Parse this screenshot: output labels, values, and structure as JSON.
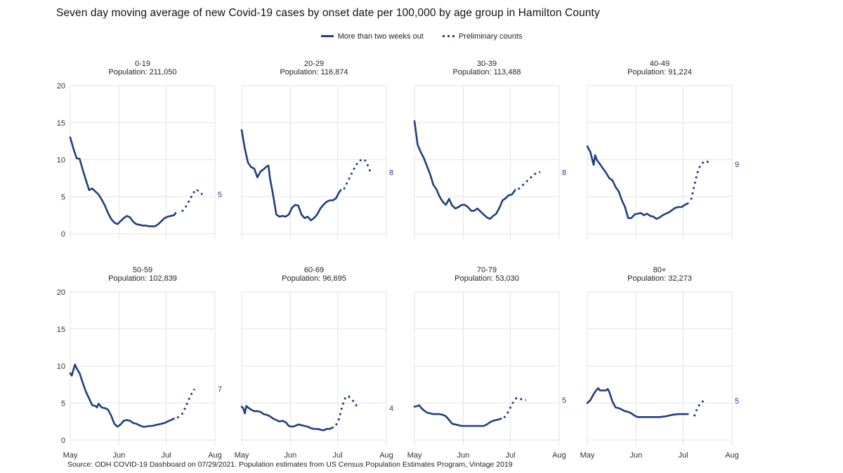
{
  "title": "Seven day moving average of new Covid-19 cases by onset date per 100,000 by age group in Hamilton County",
  "legend": {
    "solid_label": "More than two weeks out",
    "dotted_label": "Preliminary counts"
  },
  "source": "Source: ODH COVID-19 Dashboard on 07/29/2021. Population estimates from US Census Population Estimates Program, Vintage 2019",
  "colors": {
    "line": "#1f3f7f",
    "grid": "#e3e3e3",
    "axis_text": "#333333"
  },
  "chart_data": {
    "type": "line",
    "x_tick_labels": [
      "May",
      "Jun",
      "Jul",
      "Aug"
    ],
    "x_tick_days": [
      0,
      31,
      61,
      92
    ],
    "x_range_days": [
      0,
      92
    ],
    "y_ticks": [
      0,
      5,
      10,
      15,
      20
    ],
    "ylim": [
      0,
      20
    ],
    "grid": true,
    "panels": [
      {
        "title": "0-19",
        "subtitle": "Population: 211,050",
        "end_label": "5",
        "solid": [
          [
            0,
            13
          ],
          [
            2,
            11.5
          ],
          [
            4,
            10.2
          ],
          [
            6,
            10.1
          ],
          [
            8,
            8.6
          ],
          [
            10,
            7.2
          ],
          [
            12,
            5.9
          ],
          [
            14,
            6.1
          ],
          [
            16,
            5.7
          ],
          [
            18,
            5.3
          ],
          [
            20,
            4.6
          ],
          [
            22,
            3.8
          ],
          [
            24,
            2.8
          ],
          [
            26,
            2
          ],
          [
            28,
            1.5
          ],
          [
            30,
            1.3
          ],
          [
            32,
            1.7
          ],
          [
            34,
            2.1
          ],
          [
            36,
            2.4
          ],
          [
            38,
            2.2
          ],
          [
            40,
            1.6
          ],
          [
            42,
            1.3
          ],
          [
            44,
            1.2
          ],
          [
            46,
            1.1
          ],
          [
            48,
            1.1
          ],
          [
            50,
            1
          ],
          [
            52,
            1
          ],
          [
            54,
            1
          ],
          [
            56,
            1.3
          ],
          [
            58,
            1.7
          ],
          [
            60,
            2.1
          ],
          [
            62,
            2.3
          ],
          [
            64,
            2.4
          ],
          [
            66,
            2.5
          ],
          [
            67,
            2.8
          ]
        ],
        "prelim": [
          [
            71,
            3
          ],
          [
            74,
            3.8
          ],
          [
            76,
            4.6
          ],
          [
            78,
            5.4
          ],
          [
            80,
            6
          ],
          [
            82,
            5.7
          ],
          [
            84,
            5.3
          ]
        ]
      },
      {
        "title": "20-29",
        "subtitle": "Population: 116,874",
        "end_label": "8",
        "solid": [
          [
            0,
            14
          ],
          [
            2,
            11.5
          ],
          [
            4,
            9.6
          ],
          [
            6,
            9
          ],
          [
            8,
            8.8
          ],
          [
            10,
            7.6
          ],
          [
            12,
            8.4
          ],
          [
            14,
            8.7
          ],
          [
            16,
            9.1
          ],
          [
            17,
            9.2
          ],
          [
            18,
            7.5
          ],
          [
            20,
            5.2
          ],
          [
            22,
            2.6
          ],
          [
            24,
            2.3
          ],
          [
            26,
            2.4
          ],
          [
            28,
            2.3
          ],
          [
            30,
            2.6
          ],
          [
            32,
            3.5
          ],
          [
            34,
            3.9
          ],
          [
            36,
            3.8
          ],
          [
            38,
            2.6
          ],
          [
            40,
            2.1
          ],
          [
            42,
            2.3
          ],
          [
            44,
            1.8
          ],
          [
            46,
            2.1
          ],
          [
            48,
            2.6
          ],
          [
            50,
            3.4
          ],
          [
            52,
            3.9
          ],
          [
            54,
            4.3
          ],
          [
            56,
            4.5
          ],
          [
            58,
            4.5
          ],
          [
            60,
            4.8
          ],
          [
            62,
            5.6
          ],
          [
            63,
            5.9
          ]
        ],
        "prelim": [
          [
            65,
            6
          ],
          [
            68,
            7.3
          ],
          [
            71,
            8.6
          ],
          [
            74,
            9.7
          ],
          [
            77,
            10.1
          ],
          [
            79,
            9.8
          ],
          [
            82,
            8.3
          ]
        ]
      },
      {
        "title": "30-39",
        "subtitle": "Population: 113,488",
        "end_label": "8",
        "solid": [
          [
            0,
            15.2
          ],
          [
            2,
            12
          ],
          [
            4,
            11
          ],
          [
            6,
            10.2
          ],
          [
            8,
            9.1
          ],
          [
            10,
            8
          ],
          [
            12,
            6.6
          ],
          [
            14,
            6
          ],
          [
            16,
            5
          ],
          [
            18,
            4.3
          ],
          [
            20,
            3.9
          ],
          [
            22,
            4.7
          ],
          [
            24,
            3.8
          ],
          [
            26,
            3.4
          ],
          [
            28,
            3.6
          ],
          [
            30,
            3.9
          ],
          [
            32,
            3.9
          ],
          [
            34,
            3.6
          ],
          [
            36,
            3.1
          ],
          [
            38,
            3.1
          ],
          [
            40,
            3.4
          ],
          [
            42,
            3
          ],
          [
            44,
            2.6
          ],
          [
            46,
            2.2
          ],
          [
            48,
            2
          ],
          [
            50,
            2.4
          ],
          [
            52,
            2.7
          ],
          [
            54,
            3.5
          ],
          [
            56,
            4.5
          ],
          [
            58,
            4.8
          ],
          [
            60,
            5.2
          ],
          [
            62,
            5.3
          ],
          [
            64,
            5.9
          ]
        ],
        "prelim": [
          [
            66,
            6
          ],
          [
            69,
            6.6
          ],
          [
            72,
            7.2
          ],
          [
            75,
            7.8
          ],
          [
            78,
            8.3
          ],
          [
            80,
            8.3
          ]
        ]
      },
      {
        "title": "40-49",
        "subtitle": "Population:  91,224",
        "end_label": "9",
        "solid": [
          [
            0,
            11.8
          ],
          [
            2,
            11
          ],
          [
            4,
            9.3
          ],
          [
            5,
            10.6
          ],
          [
            6,
            10
          ],
          [
            8,
            9.4
          ],
          [
            10,
            8.8
          ],
          [
            12,
            8.2
          ],
          [
            14,
            7.5
          ],
          [
            16,
            7.2
          ],
          [
            18,
            6.3
          ],
          [
            20,
            5.7
          ],
          [
            22,
            4.5
          ],
          [
            24,
            3.6
          ],
          [
            26,
            2.1
          ],
          [
            28,
            2.1
          ],
          [
            30,
            2.6
          ],
          [
            32,
            2.7
          ],
          [
            34,
            2.8
          ],
          [
            36,
            2.5
          ],
          [
            38,
            2.7
          ],
          [
            40,
            2.4
          ],
          [
            42,
            2.3
          ],
          [
            44,
            2
          ],
          [
            46,
            2.2
          ],
          [
            48,
            2.5
          ],
          [
            50,
            2.7
          ],
          [
            52,
            2.9
          ],
          [
            54,
            3.2
          ],
          [
            56,
            3.5
          ],
          [
            58,
            3.6
          ],
          [
            60,
            3.6
          ],
          [
            62,
            3.9
          ],
          [
            64,
            4.1
          ]
        ],
        "prelim": [
          [
            66,
            4.6
          ],
          [
            68,
            6.5
          ],
          [
            70,
            8.2
          ],
          [
            72,
            9.3
          ],
          [
            74,
            9.7
          ],
          [
            76,
            9.8
          ],
          [
            78,
            9.4
          ]
        ]
      },
      {
        "title": "50-59",
        "subtitle": "Population: 102,839",
        "end_label": "7",
        "solid": [
          [
            0,
            9
          ],
          [
            1,
            8.7
          ],
          [
            2,
            9.5
          ],
          [
            3,
            10.2
          ],
          [
            4,
            9.7
          ],
          [
            6,
            9
          ],
          [
            8,
            7.7
          ],
          [
            10,
            6.5
          ],
          [
            12,
            5.6
          ],
          [
            14,
            4.7
          ],
          [
            16,
            4.6
          ],
          [
            17,
            4.4
          ],
          [
            18,
            4.9
          ],
          [
            20,
            4.4
          ],
          [
            22,
            4.3
          ],
          [
            24,
            4.1
          ],
          [
            26,
            3.3
          ],
          [
            28,
            2.2
          ],
          [
            30,
            1.8
          ],
          [
            32,
            2.1
          ],
          [
            34,
            2.6
          ],
          [
            36,
            2.7
          ],
          [
            38,
            2.6
          ],
          [
            40,
            2.3
          ],
          [
            42,
            2.2
          ],
          [
            44,
            2
          ],
          [
            46,
            1.8
          ],
          [
            48,
            1.8
          ],
          [
            50,
            1.9
          ],
          [
            52,
            1.9
          ],
          [
            54,
            2
          ],
          [
            56,
            2.1
          ],
          [
            58,
            2.2
          ],
          [
            60,
            2.3
          ],
          [
            62,
            2.5
          ],
          [
            64,
            2.7
          ],
          [
            66,
            2.9
          ]
        ],
        "prelim": [
          [
            68,
            3
          ],
          [
            71,
            3.5
          ],
          [
            73,
            4.3
          ],
          [
            75,
            5.3
          ],
          [
            77,
            6.2
          ],
          [
            79,
            6.9
          ]
        ]
      },
      {
        "title": "60-69",
        "subtitle": "Population:  96,695",
        "end_label": "4",
        "solid": [
          [
            0,
            4.5
          ],
          [
            1,
            4.3
          ],
          [
            2,
            3.6
          ],
          [
            3,
            4.6
          ],
          [
            4,
            4.4
          ],
          [
            6,
            4.1
          ],
          [
            8,
            3.9
          ],
          [
            10,
            3.9
          ],
          [
            12,
            3.8
          ],
          [
            14,
            3.5
          ],
          [
            16,
            3.4
          ],
          [
            18,
            3.2
          ],
          [
            20,
            2.9
          ],
          [
            22,
            2.7
          ],
          [
            24,
            2.5
          ],
          [
            26,
            2.6
          ],
          [
            28,
            2.4
          ],
          [
            30,
            1.9
          ],
          [
            32,
            1.8
          ],
          [
            34,
            1.9
          ],
          [
            36,
            2.1
          ],
          [
            38,
            2
          ],
          [
            40,
            1.9
          ],
          [
            42,
            1.8
          ],
          [
            44,
            1.6
          ],
          [
            46,
            1.5
          ],
          [
            48,
            1.5
          ],
          [
            50,
            1.4
          ],
          [
            52,
            1.3
          ],
          [
            54,
            1.5
          ],
          [
            56,
            1.5
          ],
          [
            58,
            1.7
          ]
        ],
        "prelim": [
          [
            60,
            2
          ],
          [
            62,
            2.9
          ],
          [
            64,
            4.6
          ],
          [
            66,
            5.8
          ],
          [
            68,
            5.9
          ],
          [
            70,
            5.5
          ],
          [
            72,
            5
          ],
          [
            74,
            4.3
          ]
        ]
      },
      {
        "title": "70-79",
        "subtitle": "Population:  53,030",
        "end_label": "5",
        "solid": [
          [
            0,
            4.5
          ],
          [
            2,
            4.6
          ],
          [
            3,
            4.7
          ],
          [
            4,
            4.4
          ],
          [
            6,
            4
          ],
          [
            8,
            3.7
          ],
          [
            10,
            3.6
          ],
          [
            12,
            3.5
          ],
          [
            14,
            3.5
          ],
          [
            16,
            3.5
          ],
          [
            18,
            3.4
          ],
          [
            20,
            3.2
          ],
          [
            22,
            2.7
          ],
          [
            24,
            2.2
          ],
          [
            26,
            2.1
          ],
          [
            28,
            2
          ],
          [
            30,
            1.9
          ],
          [
            32,
            1.9
          ],
          [
            34,
            1.9
          ],
          [
            36,
            1.9
          ],
          [
            38,
            1.9
          ],
          [
            40,
            1.9
          ],
          [
            42,
            1.9
          ],
          [
            44,
            1.9
          ],
          [
            46,
            2.1
          ],
          [
            48,
            2.4
          ],
          [
            50,
            2.6
          ],
          [
            52,
            2.7
          ],
          [
            54,
            2.8
          ],
          [
            55,
            2.9
          ]
        ],
        "prelim": [
          [
            57,
            3
          ],
          [
            59,
            3.6
          ],
          [
            61,
            4.4
          ],
          [
            63,
            5.2
          ],
          [
            65,
            5.7
          ],
          [
            67,
            5.6
          ],
          [
            69,
            5.4
          ],
          [
            71,
            5.4
          ]
        ]
      },
      {
        "title": "80+",
        "subtitle": "Population:  32,273",
        "end_label": "5",
        "solid": [
          [
            0,
            5
          ],
          [
            2,
            5.4
          ],
          [
            4,
            6.2
          ],
          [
            6,
            6.8
          ],
          [
            7,
            7
          ],
          [
            8,
            6.7
          ],
          [
            12,
            6.7
          ],
          [
            13,
            6.9
          ],
          [
            14,
            6.5
          ],
          [
            16,
            5.2
          ],
          [
            18,
            4.4
          ],
          [
            20,
            4.3
          ],
          [
            22,
            4.1
          ],
          [
            24,
            3.9
          ],
          [
            26,
            3.8
          ],
          [
            28,
            3.6
          ],
          [
            30,
            3.3
          ],
          [
            32,
            3.1
          ],
          [
            34,
            3.1
          ],
          [
            40,
            3.1
          ],
          [
            46,
            3.1
          ],
          [
            50,
            3.2
          ],
          [
            54,
            3.4
          ],
          [
            58,
            3.5
          ],
          [
            64,
            3.5
          ]
        ],
        "prelim": [
          [
            68,
            3.2
          ],
          [
            70,
            4.3
          ],
          [
            72,
            5
          ],
          [
            74,
            5.3
          ]
        ]
      }
    ]
  }
}
